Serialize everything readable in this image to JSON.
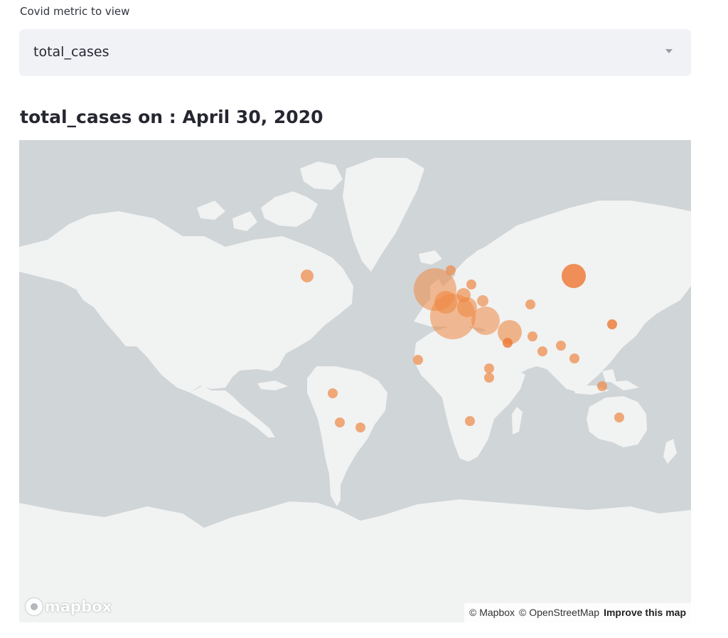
{
  "select": {
    "label": "Covid metric to view",
    "value": "total_cases"
  },
  "heading": "total_cases on : April 30, 2020",
  "map": {
    "logo_text": "mapbox",
    "attribution": {
      "mapbox": "© Mapbox",
      "osm": "© OpenStreetMap",
      "improve": "Improve this map"
    },
    "colors": {
      "ocean": "#d0d5d7",
      "land": "#f1f2f2",
      "marker": "#ee8844"
    }
  }
}
